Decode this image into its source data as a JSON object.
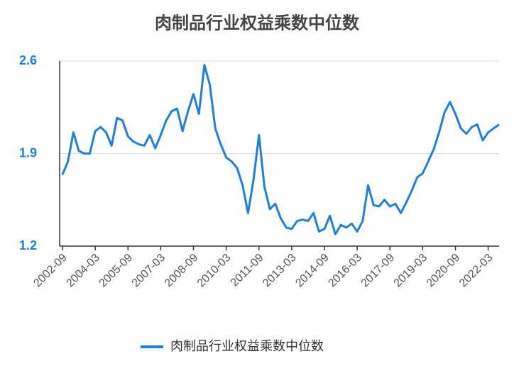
{
  "chart_data": {
    "type": "line",
    "title": "肉制品行业权益乘数中位数",
    "categories": [
      "2002-09",
      null,
      null,
      null,
      null,
      null,
      "2004-03",
      null,
      null,
      null,
      null,
      null,
      "2005-09",
      null,
      null,
      null,
      null,
      null,
      "2007-03",
      null,
      null,
      null,
      null,
      null,
      "2008-09",
      null,
      null,
      null,
      null,
      null,
      "2010-03",
      null,
      null,
      null,
      null,
      null,
      "2011-09",
      null,
      null,
      null,
      null,
      null,
      "2013-03",
      null,
      null,
      null,
      null,
      null,
      "2014-09",
      null,
      null,
      null,
      null,
      null,
      "2016-03",
      null,
      null,
      null,
      null,
      null,
      "2017-09",
      null,
      null,
      null,
      null,
      null,
      "2019-03",
      null,
      null,
      null,
      null,
      null,
      "2020-09",
      null,
      null,
      null,
      null,
      null,
      "2022-03",
      null,
      null
    ],
    "series": [
      {
        "name": "肉制品行业权益乘数中位数",
        "color": "#1f7fe0",
        "values": [
          1.74,
          1.84,
          2.06,
          1.92,
          1.9,
          1.9,
          2.07,
          2.1,
          2.06,
          1.96,
          2.17,
          2.15,
          2.03,
          1.99,
          1.97,
          1.96,
          2.04,
          1.94,
          2.04,
          2.15,
          2.22,
          2.24,
          2.07,
          2.22,
          2.35,
          2.2,
          2.57,
          2.42,
          2.09,
          1.97,
          1.87,
          1.84,
          1.79,
          1.66,
          1.45,
          1.7,
          2.04,
          1.65,
          1.48,
          1.52,
          1.41,
          1.34,
          1.33,
          1.39,
          1.4,
          1.39,
          1.45,
          1.31,
          1.33,
          1.43,
          1.29,
          1.36,
          1.34,
          1.37,
          1.31,
          1.39,
          1.66,
          1.51,
          1.5,
          1.55,
          1.5,
          1.52,
          1.45,
          1.53,
          1.62,
          1.72,
          1.75,
          1.84,
          1.93,
          2.06,
          2.21,
          2.29,
          2.2,
          2.09,
          2.05,
          2.1,
          2.12,
          2.0,
          2.06,
          2.09,
          2.12
        ]
      }
    ],
    "ylim": [
      1.2,
      2.6
    ],
    "yticks": [
      1.2,
      1.9,
      2.6
    ],
    "grid": true
  }
}
